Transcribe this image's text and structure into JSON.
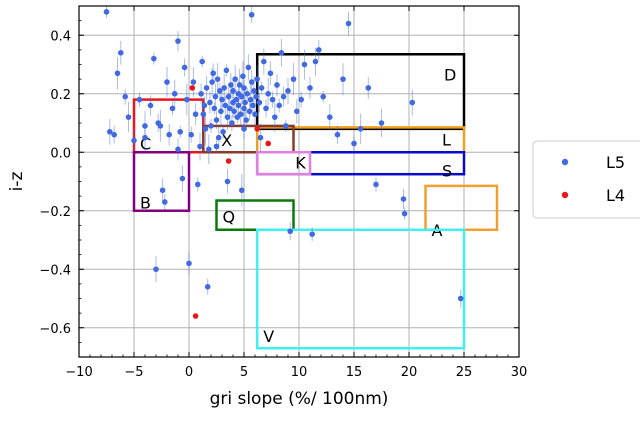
{
  "chart_data": {
    "type": "scatter",
    "xlabel": "gri slope (%/ 100nm)",
    "ylabel": "i-z",
    "xlim": [
      -10,
      30
    ],
    "ylim": [
      -0.7,
      0.5
    ],
    "xticks": [
      -10,
      -5,
      0,
      5,
      10,
      15,
      20,
      25,
      30
    ],
    "yticks": [
      -0.6,
      -0.4,
      -0.2,
      0.0,
      0.2,
      0.4
    ],
    "xtick_labels": [
      "−10",
      "−5",
      "0",
      "5",
      "10",
      "15",
      "20",
      "25",
      "30"
    ],
    "ytick_labels": [
      "−0.6",
      "−0.4",
      "−0.2",
      "0.0",
      "0.2",
      "0.4"
    ],
    "grid": true,
    "legend_position": "right",
    "series": [
      {
        "name": "L5",
        "color": "#4169e1",
        "points": [
          [
            -7.5,
            0.48
          ],
          [
            -7.2,
            0.07
          ],
          [
            -6.8,
            0.06
          ],
          [
            -6.5,
            0.27
          ],
          [
            -6.2,
            0.34
          ],
          [
            -5.8,
            0.19
          ],
          [
            -5.5,
            0.12
          ],
          [
            -5.0,
            0.04
          ],
          [
            -4.5,
            0.18
          ],
          [
            -4.0,
            0.05
          ],
          [
            -3.5,
            0.16
          ],
          [
            -3.2,
            0.32
          ],
          [
            -3.0,
            -0.4
          ],
          [
            -2.8,
            0.1
          ],
          [
            -2.6,
            0.09
          ],
          [
            -2.4,
            -0.13
          ],
          [
            -2.2,
            -0.17
          ],
          [
            -2.0,
            0.24
          ],
          [
            -1.8,
            0.06
          ],
          [
            -1.5,
            0.15
          ],
          [
            -1.3,
            0.2
          ],
          [
            -1.0,
            0.38
          ],
          [
            -0.8,
            0.07
          ],
          [
            -0.6,
            -0.09
          ],
          [
            -0.4,
            0.29
          ],
          [
            -0.2,
            0.18
          ],
          [
            0.0,
            -0.38
          ],
          [
            0.2,
            0.06
          ],
          [
            0.4,
            0.24
          ],
          [
            0.6,
            0.13
          ],
          [
            0.8,
            -0.11
          ],
          [
            1.0,
            0.02
          ],
          [
            1.1,
            0.2
          ],
          [
            1.2,
            0.31
          ],
          [
            1.3,
            0.13
          ],
          [
            1.4,
            0.16
          ],
          [
            1.5,
            0.08
          ],
          [
            1.6,
            0.22
          ],
          [
            1.7,
            -0.46
          ],
          [
            1.8,
            0.01
          ],
          [
            1.9,
            0.17
          ],
          [
            2.0,
            0.09
          ],
          [
            2.1,
            0.24
          ],
          [
            2.2,
            0.27
          ],
          [
            2.3,
            0.15
          ],
          [
            2.4,
            0.19
          ],
          [
            2.5,
            0.11
          ],
          [
            2.6,
            0.25
          ],
          [
            2.7,
            0.05
          ],
          [
            2.8,
            0.21
          ],
          [
            2.9,
            0.14
          ],
          [
            3.0,
            0.18
          ],
          [
            3.1,
            0.07
          ],
          [
            3.2,
            0.22
          ],
          [
            3.3,
            0.16
          ],
          [
            3.4,
            0.28
          ],
          [
            3.5,
            0.12
          ],
          [
            3.6,
            0.19
          ],
          [
            3.7,
            0.15
          ],
          [
            3.8,
            0.23
          ],
          [
            3.9,
            0.1
          ],
          [
            4.0,
            0.17
          ],
          [
            4.0,
            0.21
          ],
          [
            4.1,
            0.14
          ],
          [
            4.2,
            0.25
          ],
          [
            4.3,
            0.18
          ],
          [
            4.4,
            0.12
          ],
          [
            4.5,
            0.2
          ],
          [
            4.5,
            0.16
          ],
          [
            4.6,
            0.23
          ],
          [
            4.7,
            0.13
          ],
          [
            4.8,
            0.19
          ],
          [
            4.9,
            0.26
          ],
          [
            5.0,
            0.15
          ],
          [
            5.0,
            0.22
          ],
          [
            5.1,
            0.17
          ],
          [
            5.2,
            0.11
          ],
          [
            5.3,
            0.2
          ],
          [
            5.4,
            0.29
          ],
          [
            5.5,
            0.14
          ],
          [
            5.6,
            0.18
          ],
          [
            5.7,
            0.24
          ],
          [
            5.8,
            0.16
          ],
          [
            5.9,
            0.21
          ],
          [
            6.0,
            0.13
          ],
          [
            6.1,
            0.19
          ],
          [
            6.2,
            0.25
          ],
          [
            6.4,
            0.17
          ],
          [
            6.6,
            0.22
          ],
          [
            6.8,
            0.31
          ],
          [
            7.0,
            0.15
          ],
          [
            7.2,
            0.2
          ],
          [
            7.4,
            0.27
          ],
          [
            7.6,
            0.18
          ],
          [
            7.8,
            0.12
          ],
          [
            8.0,
            0.23
          ],
          [
            8.2,
            0.16
          ],
          [
            8.4,
            0.34
          ],
          [
            8.6,
            0.19
          ],
          [
            8.8,
            0.09
          ],
          [
            9.0,
            0.21
          ],
          [
            9.2,
            -0.27
          ],
          [
            9.5,
            0.25
          ],
          [
            9.8,
            0.14
          ],
          [
            10.2,
            0.18
          ],
          [
            10.5,
            0.3
          ],
          [
            11.0,
            0.22
          ],
          [
            11.2,
            -0.28
          ],
          [
            11.5,
            0.31
          ],
          [
            11.8,
            0.35
          ],
          [
            12.2,
            0.19
          ],
          [
            12.8,
            0.12
          ],
          [
            13.5,
            0.06
          ],
          [
            14.0,
            0.25
          ],
          [
            14.5,
            0.44
          ],
          [
            15.0,
            0.03
          ],
          [
            15.6,
            0.08
          ],
          [
            16.3,
            0.22
          ],
          [
            17.0,
            -0.11
          ],
          [
            17.5,
            0.1
          ],
          [
            19.5,
            -0.16
          ],
          [
            19.6,
            -0.21
          ],
          [
            20.3,
            0.17
          ],
          [
            24.7,
            -0.5
          ],
          [
            4.8,
            -0.13
          ],
          [
            3.5,
            -0.1
          ],
          [
            5.7,
            0.47
          ],
          [
            -4.0,
            0.09
          ],
          [
            -1.0,
            0.01
          ],
          [
            2.5,
            0.02
          ],
          [
            6.5,
            0.05
          ],
          [
            5.0,
            0.08
          ]
        ]
      },
      {
        "name": "L4",
        "color": "#e8161b",
        "points": [
          [
            0.3,
            0.22
          ],
          [
            3.6,
            -0.03
          ],
          [
            7.2,
            0.03
          ],
          [
            6.2,
            0.08
          ],
          [
            0.6,
            -0.56
          ]
        ]
      }
    ],
    "regions": [
      {
        "label": "D",
        "color": "#000000",
        "x0": 6.2,
        "x1": 25,
        "y0": 0.08,
        "y1": 0.335
      },
      {
        "label": "L",
        "color": "#f0a020",
        "x0": 6.2,
        "x1": 25,
        "y0": 0.0,
        "y1": 0.085
      },
      {
        "label": "S",
        "color": "#0a0ac8",
        "x0": 6.2,
        "x1": 25,
        "y0": -0.075,
        "y1": 0.0
      },
      {
        "label": "C",
        "color": "#e8161b",
        "x0": -5,
        "x1": 1.3,
        "y0": 0.0,
        "y1": 0.18
      },
      {
        "label": "X",
        "color": "#8b3a2a",
        "x0": 1.3,
        "x1": 9.5,
        "y0": 0.0,
        "y1": 0.09
      },
      {
        "label": "B",
        "color": "#800080",
        "x0": -5,
        "x1": 0,
        "y0": -0.2,
        "y1": 0.0
      },
      {
        "label": "K",
        "color": "#e080e0",
        "x0": 6.2,
        "x1": 11.0,
        "y0": -0.075,
        "y1": 0.0
      },
      {
        "label": "Q",
        "color": "#0a7a0a",
        "x0": 2.5,
        "x1": 9.5,
        "y0": -0.265,
        "y1": -0.165
      },
      {
        "label": "A",
        "color": "#f0a030",
        "x0": 21.5,
        "x1": 28.0,
        "y0": -0.265,
        "y1": -0.115
      },
      {
        "label": "V",
        "color": "#40f0f0",
        "x0": 6.2,
        "x1": 25,
        "y0": -0.67,
        "y1": -0.265
      }
    ]
  }
}
